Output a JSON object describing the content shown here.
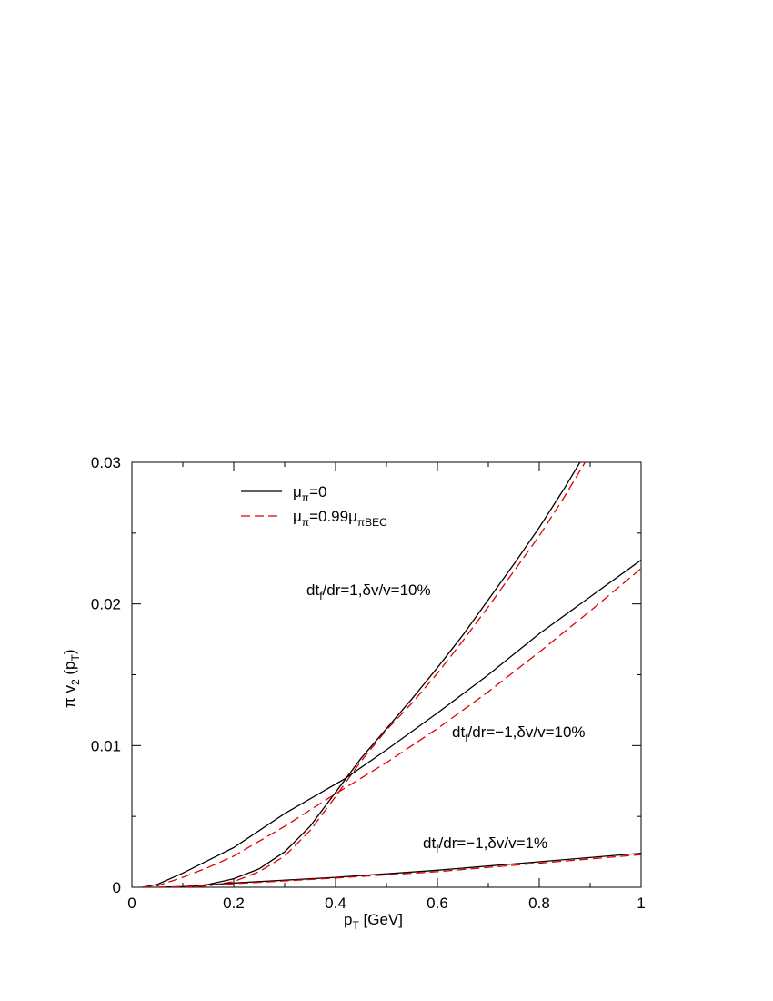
{
  "chart_data": {
    "type": "line",
    "xlabel": [
      "p",
      {
        "sub": "T"
      },
      " [GeV]"
    ],
    "ylabel": [
      "π v",
      {
        "sub": "2"
      },
      " (p",
      {
        "sub": "T"
      },
      ")"
    ],
    "xlim": [
      0,
      1
    ],
    "ylim": [
      0,
      0.03
    ],
    "xticks": [
      0,
      0.2,
      0.4,
      0.6,
      0.8,
      1
    ],
    "yticks": [
      0,
      0.01,
      0.02,
      0.03
    ],
    "xminorticks": [
      0.1,
      0.3,
      0.5,
      0.7,
      0.9
    ],
    "yminorticks": [
      0.005,
      0.015,
      0.025
    ],
    "legend": [
      {
        "label": [
          "μ",
          {
            "sub": "π"
          },
          "=0"
        ],
        "color": "#000000",
        "dash": false
      },
      {
        "label": [
          "μ",
          {
            "sub": "π"
          },
          "=0.99μ",
          {
            "sub": "πBEC"
          }
        ],
        "color": "#e00000",
        "dash": true
      }
    ],
    "annotations": [
      [
        "dt",
        {
          "sub": "f"
        },
        "/dr=1,δv/v=10%"
      ],
      [
        "dt",
        {
          "sub": "f"
        },
        "/dr=−1,δv/v=10%"
      ],
      [
        "dt",
        {
          "sub": "f"
        },
        "/dr=−1,δv/v=1%"
      ]
    ],
    "series": [
      {
        "legend": 0,
        "color": "#000000",
        "dash": false,
        "x": [
          0.1,
          0.15,
          0.2,
          0.25,
          0.3,
          0.35,
          0.4,
          0.45,
          0.5,
          0.55,
          0.6,
          0.65,
          0.7,
          0.75,
          0.8,
          0.85,
          0.88
        ],
        "values": [
          0,
          0.0002,
          0.0006,
          0.0013,
          0.0025,
          0.0043,
          0.0067,
          0.0091,
          0.0112,
          0.0133,
          0.0155,
          0.0178,
          0.0203,
          0.0228,
          0.0254,
          0.0282,
          0.03
        ]
      },
      {
        "legend": 1,
        "color": "#e00000",
        "dash": true,
        "x": [
          0.1,
          0.15,
          0.2,
          0.25,
          0.3,
          0.35,
          0.4,
          0.45,
          0.5,
          0.55,
          0.6,
          0.65,
          0.7,
          0.75,
          0.8,
          0.85,
          0.89
        ],
        "values": [
          0,
          0.0001,
          0.0004,
          0.0011,
          0.0022,
          0.004,
          0.0064,
          0.0089,
          0.0111,
          0.013,
          0.0151,
          0.0174,
          0.0198,
          0.0223,
          0.0248,
          0.0276,
          0.03
        ]
      },
      {
        "legend": 0,
        "color": "#000000",
        "dash": false,
        "x": [
          0.02,
          0.05,
          0.1,
          0.15,
          0.2,
          0.3,
          0.42,
          0.5,
          0.6,
          0.7,
          0.8,
          0.9,
          1
        ],
        "values": [
          0,
          0.0002,
          0.001,
          0.0019,
          0.0028,
          0.0052,
          0.0077,
          0.0097,
          0.0123,
          0.015,
          0.0179,
          0.0205,
          0.0231
        ]
      },
      {
        "legend": 1,
        "color": "#e00000",
        "dash": true,
        "x": [
          0.02,
          0.05,
          0.1,
          0.15,
          0.2,
          0.3,
          0.4,
          0.5,
          0.6,
          0.7,
          0.8,
          0.9,
          1
        ],
        "values": [
          0,
          0.0001,
          0.0007,
          0.0014,
          0.0022,
          0.0043,
          0.0066,
          0.0088,
          0.0112,
          0.0138,
          0.0166,
          0.0195,
          0.0225
        ]
      },
      {
        "legend": 0,
        "color": "#000000",
        "dash": false,
        "x": [
          0.05,
          0.1,
          0.2,
          0.4,
          0.6,
          0.8,
          1
        ],
        "values": [
          0,
          5e-05,
          0.0003,
          0.0007,
          0.0012,
          0.0018,
          0.0024
        ]
      },
      {
        "legend": 1,
        "color": "#e00000",
        "dash": true,
        "x": [
          0.05,
          0.1,
          0.2,
          0.4,
          0.6,
          0.8,
          1
        ],
        "values": [
          0,
          4e-05,
          0.00025,
          0.00065,
          0.0011,
          0.0017,
          0.0023
        ]
      }
    ]
  }
}
